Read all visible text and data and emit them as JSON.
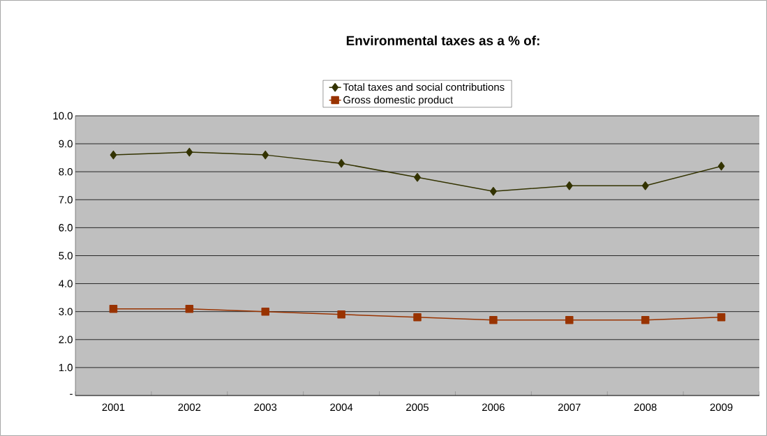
{
  "chart_data": {
    "type": "line",
    "title": "Environmental taxes as a % of:",
    "categories": [
      "2001",
      "2002",
      "2003",
      "2004",
      "2005",
      "2006",
      "2007",
      "2008",
      "2009"
    ],
    "series": [
      {
        "name": "Total taxes and social contributions",
        "color": "#333300",
        "marker": "diamond",
        "values": [
          8.6,
          8.7,
          8.6,
          8.3,
          7.8,
          7.3,
          7.5,
          7.5,
          8.2
        ]
      },
      {
        "name": "Gross domestic product",
        "color": "#993300",
        "marker": "square",
        "values": [
          3.1,
          3.1,
          3.0,
          2.9,
          2.8,
          2.7,
          2.7,
          2.7,
          2.8
        ]
      }
    ],
    "ylim": [
      0,
      10
    ],
    "yticks": [
      {
        "value": 0,
        "label": "-"
      },
      {
        "value": 1,
        "label": "1.0"
      },
      {
        "value": 2,
        "label": "2.0"
      },
      {
        "value": 3,
        "label": "3.0"
      },
      {
        "value": 4,
        "label": "4.0"
      },
      {
        "value": 5,
        "label": "5.0"
      },
      {
        "value": 6,
        "label": "6.0"
      },
      {
        "value": 7,
        "label": "7.0"
      },
      {
        "value": 8,
        "label": "8.0"
      },
      {
        "value": 9,
        "label": "9.0"
      },
      {
        "value": 10,
        "label": "10.0"
      }
    ],
    "grid": "y",
    "legend": "top",
    "line_style": "solid"
  }
}
